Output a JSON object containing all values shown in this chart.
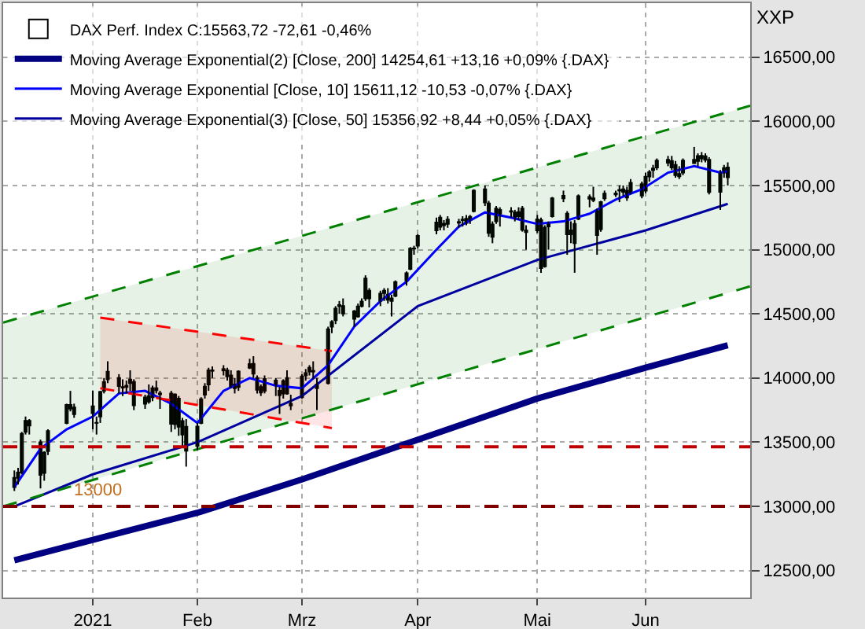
{
  "chart_data": {
    "type": "candlestick",
    "legend": "top left",
    "grid": true,
    "x": [
      "2020-12-14",
      "2020-12-15",
      "2020-12-16",
      "2020-12-17",
      "2020-12-18",
      "2020-12-21",
      "2020-12-22",
      "2020-12-23",
      "2020-12-28",
      "2020-12-29",
      "2020-12-30",
      "2021-01-04",
      "2021-01-05",
      "2021-01-06",
      "2021-01-07",
      "2021-01-08",
      "2021-01-11",
      "2021-01-12",
      "2021-01-13",
      "2021-01-14",
      "2021-01-15",
      "2021-01-18",
      "2021-01-19",
      "2021-01-20",
      "2021-01-21",
      "2021-01-22",
      "2021-01-25",
      "2021-01-26",
      "2021-01-27",
      "2021-01-28",
      "2021-01-29",
      "2021-02-01",
      "2021-02-02",
      "2021-02-03",
      "2021-02-04",
      "2021-02-05",
      "2021-02-08",
      "2021-02-09",
      "2021-02-10",
      "2021-02-11",
      "2021-02-12",
      "2021-02-15",
      "2021-02-16",
      "2021-02-17",
      "2021-02-18",
      "2021-02-19",
      "2021-02-22",
      "2021-02-23",
      "2021-02-24",
      "2021-02-25",
      "2021-02-26",
      "2021-03-01",
      "2021-03-02",
      "2021-03-03",
      "2021-03-04",
      "2021-03-05",
      "2021-03-08",
      "2021-03-09",
      "2021-03-10",
      "2021-03-11",
      "2021-03-12",
      "2021-03-15",
      "2021-03-16",
      "2021-03-17",
      "2021-03-18",
      "2021-03-19",
      "2021-03-22",
      "2021-03-23",
      "2021-03-24",
      "2021-03-25",
      "2021-03-26",
      "2021-03-29",
      "2021-03-30",
      "2021-03-31",
      "2021-04-01",
      "2021-04-06",
      "2021-04-07",
      "2021-04-08",
      "2021-04-09",
      "2021-04-12",
      "2021-04-13",
      "2021-04-14",
      "2021-04-15",
      "2021-04-16",
      "2021-04-19",
      "2021-04-20",
      "2021-04-21",
      "2021-04-22",
      "2021-04-23",
      "2021-04-26",
      "2021-04-27",
      "2021-04-28",
      "2021-04-29",
      "2021-04-30",
      "2021-05-03",
      "2021-05-04",
      "2021-05-05",
      "2021-05-06",
      "2021-05-07",
      "2021-05-10",
      "2021-05-11",
      "2021-05-12",
      "2021-05-13",
      "2021-05-14",
      "2021-05-17",
      "2021-05-18",
      "2021-05-19",
      "2021-05-20",
      "2021-05-21",
      "2021-05-24",
      "2021-05-25",
      "2021-05-26",
      "2021-05-27",
      "2021-05-28",
      "2021-05-31",
      "2021-06-01",
      "2021-06-02",
      "2021-06-03",
      "2021-06-04",
      "2021-06-07",
      "2021-06-08",
      "2021-06-09",
      "2021-06-10",
      "2021-06-11",
      "2021-06-14",
      "2021-06-15",
      "2021-06-16",
      "2021-06-17",
      "2021-06-18",
      "2021-06-21",
      "2021-06-22",
      "2021-06-23"
    ],
    "series": [
      {
        "type": "candlestick",
        "name": "DAX Perf. Index C:15563,72 -72,61 -0,46%",
        "colors": [
          "#ffffff",
          "#ffffff",
          "#ffffff",
          "#ffffff",
          "#e00000",
          "#e00000",
          "#ffffff",
          "#ffffff",
          "#ffffff",
          "#e00000",
          "#e00000",
          "#e00000",
          "#ffffff",
          "#ffffff",
          "#ffffff",
          "#ffffff",
          "#e00000",
          "#e00000",
          "#ffffff",
          "#ffffff",
          "#e00000",
          "#ffffff",
          "#e00000",
          "#ffffff",
          "#e00000",
          "#e00000",
          "#e00000",
          "#ffffff",
          "#e00000",
          "#ffffff",
          "#e00000",
          "#ffffff",
          "#ffffff",
          "#ffffff",
          "#ffffff",
          "#e00000",
          "#e00000",
          "#e00000",
          "#e00000",
          "#e00000",
          "#ffffff",
          "#ffffff",
          "#e00000",
          "#e00000",
          "#e00000",
          "#ffffff",
          "#e00000",
          "#e00000",
          "#ffffff",
          "#e00000",
          "#e00000",
          "#ffffff",
          "#ffffff",
          "#ffffff",
          "#ffffff",
          "#e00000",
          "#ffffff",
          "#ffffff",
          "#ffffff",
          "#ffffff",
          "#e00000",
          "#e00000",
          "#ffffff",
          "#ffffff",
          "#ffffff",
          "#e00000",
          "#ffffff",
          "#e00000",
          "#e00000",
          "#ffffff",
          "#ffffff",
          "#ffffff",
          "#ffffff",
          "#e00000",
          "#ffffff",
          "#ffffff",
          "#e00000",
          "#ffffff",
          "#ffffff",
          "#ffffff",
          "#ffffff",
          "#e00000",
          "#ffffff",
          "#ffffff",
          "#e00000",
          "#e00000",
          "#ffffff",
          "#ffffff",
          "#e00000",
          "#e00000",
          "#e00000",
          "#ffffff",
          "#e00000",
          "#e00000",
          "#ffffff",
          "#e00000",
          "#ffffff",
          "#ffffff",
          "#ffffff",
          "#e00000",
          "#e00000",
          "#ffffff",
          "#ffffff",
          "#ffffff",
          "#e00000",
          "#e00000",
          "#e00000",
          "#ffffff",
          "#ffffff",
          "#ffffff",
          "#ffffff",
          "#e00000",
          "#e00000",
          "#ffffff",
          "#e00000",
          "#ffffff",
          "#ffffff",
          "#ffffff",
          "#ffffff",
          "#e00000",
          "#e00000",
          "#e00000",
          "#e00000",
          "#ffffff",
          "#e00000",
          "#ffffff",
          "#e00000",
          "#ffffff",
          "#e00000",
          "#ffffff",
          "#ffffff",
          "#e00000"
        ],
        "ohlc": [
          [
            13150,
            13280,
            13120,
            13223
          ],
          [
            13223,
            13300,
            13170,
            13263
          ],
          [
            13263,
            13580,
            13250,
            13566
          ],
          [
            13580,
            13700,
            13560,
            13667
          ],
          [
            13667,
            13680,
            13560,
            13630
          ],
          [
            13500,
            13520,
            13140,
            13246
          ],
          [
            13260,
            13430,
            13200,
            13418
          ],
          [
            13430,
            13600,
            13400,
            13587
          ],
          [
            13650,
            13800,
            13640,
            13790
          ],
          [
            13790,
            13900,
            13740,
            13761
          ],
          [
            13770,
            13800,
            13690,
            13718
          ],
          [
            13780,
            13900,
            13600,
            13726
          ],
          [
            13650,
            13700,
            13560,
            13651
          ],
          [
            13700,
            13900,
            13650,
            13892
          ],
          [
            13900,
            14000,
            13880,
            13968
          ],
          [
            13990,
            14130,
            13960,
            14049
          ],
          [
            14000,
            14030,
            13880,
            13937
          ],
          [
            13930,
            13990,
            13860,
            13925
          ],
          [
            13930,
            13980,
            13880,
            13940
          ],
          [
            13960,
            14060,
            13900,
            13988
          ],
          [
            13970,
            13990,
            13750,
            13787
          ],
          [
            13800,
            13870,
            13760,
            13848
          ],
          [
            13860,
            13950,
            13800,
            13816
          ],
          [
            13850,
            13940,
            13820,
            13921
          ],
          [
            13920,
            13980,
            13880,
            13906
          ],
          [
            13880,
            13900,
            13760,
            13873
          ],
          [
            13880,
            13900,
            13580,
            13643
          ],
          [
            13640,
            13880,
            13600,
            13871
          ],
          [
            13840,
            13860,
            13550,
            13620
          ],
          [
            13560,
            13690,
            13470,
            13665
          ],
          [
            13620,
            13680,
            13310,
            13433
          ],
          [
            13470,
            13650,
            13440,
            13622
          ],
          [
            13650,
            13850,
            13640,
            13835
          ],
          [
            13870,
            13960,
            13840,
            13933
          ],
          [
            13950,
            14080,
            13900,
            14060
          ],
          [
            14060,
            14090,
            14000,
            14056
          ],
          [
            14070,
            14100,
            14020,
            14059
          ],
          [
            14060,
            14080,
            13980,
            14012
          ],
          [
            14020,
            14060,
            13920,
            13932
          ],
          [
            13950,
            14000,
            13880,
            13921
          ],
          [
            13930,
            14060,
            13900,
            14050
          ],
          [
            14080,
            14150,
            14070,
            14109
          ],
          [
            14110,
            14170,
            14000,
            14034
          ],
          [
            14000,
            14020,
            13880,
            13909
          ],
          [
            13930,
            13950,
            13860,
            13887
          ],
          [
            13900,
            14020,
            13880,
            13993
          ],
          [
            13980,
            14000,
            13860,
            13950
          ],
          [
            13900,
            13930,
            13720,
            13865
          ],
          [
            13880,
            13990,
            13840,
            13976
          ],
          [
            14000,
            14060,
            13870,
            13879
          ],
          [
            13800,
            13870,
            13750,
            13786
          ],
          [
            13850,
            14030,
            13840,
            14012
          ],
          [
            14020,
            14070,
            13980,
            14039
          ],
          [
            14050,
            14100,
            14020,
            14080
          ],
          [
            14050,
            14130,
            13990,
            14056
          ],
          [
            13950,
            14000,
            13750,
            13920
          ],
          [
            13960,
            14400,
            13950,
            14380
          ],
          [
            14400,
            14450,
            14350,
            14437
          ],
          [
            14450,
            14560,
            14420,
            14540
          ],
          [
            14560,
            14600,
            14500,
            14569
          ],
          [
            14560,
            14620,
            14480,
            14502
          ],
          [
            14520,
            14530,
            14400,
            14461
          ],
          [
            14480,
            14580,
            14470,
            14557
          ],
          [
            14560,
            14620,
            14550,
            14596
          ],
          [
            14620,
            14800,
            14600,
            14775
          ],
          [
            14680,
            14700,
            14550,
            14621
          ],
          [
            14600,
            14680,
            14560,
            14657
          ],
          [
            14680,
            14700,
            14600,
            14662
          ],
          [
            14650,
            14700,
            14580,
            14610
          ],
          [
            14600,
            14650,
            14480,
            14621
          ],
          [
            14640,
            14760,
            14630,
            14748
          ],
          [
            14760,
            14830,
            14720,
            14817
          ],
          [
            14850,
            15020,
            14840,
            15008
          ],
          [
            15010,
            15030,
            14960,
            15008
          ],
          [
            15030,
            15120,
            15010,
            15107
          ],
          [
            15150,
            15250,
            15120,
            15212
          ],
          [
            15250,
            15270,
            15150,
            15177
          ],
          [
            15190,
            15230,
            15150,
            15202
          ],
          [
            15200,
            15260,
            15170,
            15234
          ],
          [
            15210,
            15240,
            15170,
            15215
          ],
          [
            15230,
            15260,
            15180,
            15234
          ],
          [
            15240,
            15270,
            15190,
            15209
          ],
          [
            15230,
            15270,
            15200,
            15255
          ],
          [
            15300,
            15470,
            15290,
            15460
          ],
          [
            15470,
            15500,
            15340,
            15368
          ],
          [
            15360,
            15380,
            15100,
            15130
          ],
          [
            15100,
            15220,
            15050,
            15196
          ],
          [
            15220,
            15340,
            15200,
            15320
          ],
          [
            15310,
            15330,
            15180,
            15280
          ],
          [
            15300,
            15330,
            15250,
            15296
          ],
          [
            15290,
            15310,
            15220,
            15249
          ],
          [
            15260,
            15330,
            15230,
            15292
          ],
          [
            15320,
            15340,
            15140,
            15154
          ],
          [
            15150,
            15190,
            15000,
            15136
          ],
          [
            15150,
            15270,
            15130,
            15236
          ],
          [
            15230,
            15250,
            14820,
            14856
          ],
          [
            14870,
            15190,
            14860,
            15170
          ],
          [
            15180,
            15220,
            15000,
            15197
          ],
          [
            15260,
            15410,
            15250,
            15400
          ],
          [
            15420,
            15460,
            15370,
            15400
          ],
          [
            15280,
            15300,
            14960,
            15120
          ],
          [
            15120,
            15220,
            15050,
            15150
          ],
          [
            15050,
            15230,
            14820,
            15200
          ],
          [
            15240,
            15430,
            15230,
            15416
          ],
          [
            15410,
            15430,
            15330,
            15397
          ],
          [
            15400,
            15490,
            15370,
            15386
          ],
          [
            15300,
            15320,
            14960,
            15114
          ],
          [
            15160,
            15380,
            15140,
            15370
          ],
          [
            15400,
            15460,
            15380,
            15437
          ],
          [
            15430,
            15460,
            15410,
            15438
          ],
          [
            15460,
            15500,
            15370,
            15465
          ],
          [
            15470,
            15500,
            15420,
            15450
          ],
          [
            15460,
            15490,
            15380,
            15406
          ],
          [
            15440,
            15550,
            15430,
            15520
          ],
          [
            15510,
            15530,
            15400,
            15421
          ],
          [
            15460,
            15600,
            15440,
            15568
          ],
          [
            15570,
            15620,
            15530,
            15603
          ],
          [
            15620,
            15660,
            15560,
            15632
          ],
          [
            15640,
            15710,
            15620,
            15693
          ],
          [
            15700,
            15730,
            15650,
            15677
          ],
          [
            15690,
            15730,
            15620,
            15640
          ],
          [
            15660,
            15690,
            15560,
            15581
          ],
          [
            15590,
            15650,
            15550,
            15571
          ],
          [
            15600,
            15710,
            15580,
            15693
          ],
          [
            15700,
            15800,
            15670,
            15673
          ],
          [
            15690,
            15750,
            15650,
            15729
          ],
          [
            15730,
            15760,
            15680,
            15711
          ],
          [
            15700,
            15750,
            15680,
            15728
          ],
          [
            15700,
            15720,
            15430,
            15448
          ],
          [
            15450,
            15620,
            15310,
            15603
          ],
          [
            15600,
            15660,
            15560,
            15636
          ],
          [
            15640,
            15680,
            15500,
            15563.72
          ]
        ]
      },
      {
        "type": "line",
        "name": "Moving Average Exponential(2) [Close, 200] 14254,61 +13,16 +0,09% {.DAX}",
        "color": "#000080",
        "x": [
          "2020-12-14",
          "2021-01-04",
          "2021-02-01",
          "2021-03-01",
          "2021-04-01",
          "2021-05-03",
          "2021-06-01",
          "2021-06-23"
        ],
        "values": [
          12580,
          12740,
          12950,
          13210,
          13520,
          13840,
          14080,
          14254.61
        ]
      },
      {
        "type": "line",
        "name": "Moving Average Exponential [Close, 10] 15611,12 -10,53 -0,07% {.DAX}",
        "color": "#0000ff",
        "x": [
          "2020-12-14",
          "2020-12-21",
          "2020-12-28",
          "2021-01-04",
          "2021-01-11",
          "2021-01-18",
          "2021-01-25",
          "2021-02-01",
          "2021-02-08",
          "2021-02-15",
          "2021-02-22",
          "2021-03-01",
          "2021-03-08",
          "2021-03-15",
          "2021-03-22",
          "2021-03-29",
          "2021-04-06",
          "2021-04-12",
          "2021-04-19",
          "2021-04-26",
          "2021-05-03",
          "2021-05-10",
          "2021-05-17",
          "2021-05-24",
          "2021-05-31",
          "2021-06-07",
          "2021-06-14",
          "2021-06-21",
          "2021-06-23"
        ],
        "values": [
          13150,
          13450,
          13600,
          13700,
          13880,
          13900,
          13800,
          13650,
          13900,
          14000,
          13940,
          13920,
          14100,
          14400,
          14600,
          14750,
          15000,
          15180,
          15290,
          15250,
          15200,
          15220,
          15280,
          15390,
          15470,
          15600,
          15650,
          15600,
          15611.12
        ]
      },
      {
        "type": "line",
        "name": "Moving Average Exponential(3) [Close, 50] 15356,92 +8,44 +0,05% {.DAX}",
        "color": "#0000a0",
        "x": [
          "2020-12-14",
          "2021-01-04",
          "2021-02-01",
          "2021-03-01",
          "2021-04-01",
          "2021-05-03",
          "2021-06-01",
          "2021-06-23"
        ],
        "values": [
          13000,
          13250,
          13500,
          13860,
          14560,
          14920,
          15150,
          15356.92
        ]
      },
      {
        "type": "line",
        "color": "#008000",
        "line_style": "dashed",
        "x": [
          "2020-12-11",
          "2021-06-29"
        ],
        "values": [
          13000,
          14714
        ]
      },
      {
        "type": "line",
        "color": "#008000",
        "line_style": "dashed",
        "x": [
          "2020-12-11",
          "2021-06-29"
        ],
        "values": [
          14432,
          16121
        ],
        "lower": [
          13000,
          14714
        ],
        "upper": [
          14432,
          16121
        ]
      },
      {
        "type": "line",
        "color": "#ff0000",
        "line_style": "dashed",
        "x": [
          "2021-01-06",
          "2021-03-09"
        ],
        "values": [
          13920,
          13610
        ]
      },
      {
        "type": "line",
        "color": "#ff0000",
        "line_style": "dashed",
        "x": [
          "2021-01-06",
          "2021-03-09"
        ],
        "values": [
          14470,
          14210
        ],
        "lower": [
          13920,
          13610
        ],
        "upper": [
          14470,
          14210
        ]
      }
    ],
    "xlim": [
      "2020-12-11",
      "2021-06-29"
    ],
    "xticks": [
      {
        "value": "2021-01-04",
        "label": "2021"
      },
      {
        "value": "2021-02-01",
        "label": "Feb"
      },
      {
        "value": "2021-03-01",
        "label": "Mrz"
      },
      {
        "value": "2021-04-01",
        "label": "Apr"
      },
      {
        "value": "2021-05-03",
        "label": "Mai"
      },
      {
        "value": "2021-06-01",
        "label": "Jun"
      }
    ],
    "ylim": [
      12290,
      16920
    ],
    "yticks": [
      {
        "value": 12500,
        "label": "12500,00"
      },
      {
        "value": 13000,
        "label": "13000,00"
      },
      {
        "value": 13500,
        "label": "13500,00"
      },
      {
        "value": 14000,
        "label": "14000,00"
      },
      {
        "value": 14500,
        "label": "14500,00"
      },
      {
        "value": 15000,
        "label": "15000,00"
      },
      {
        "value": 15500,
        "label": "15500,00"
      },
      {
        "value": 16000,
        "label": "16000,00"
      },
      {
        "value": 16500,
        "label": "16500,00"
      }
    ],
    "ref_lines": [
      {
        "axis": "y",
        "value": 13000,
        "label": "13000",
        "color": "#800000",
        "line_style": "dashed"
      },
      {
        "axis": "y",
        "value": 13465,
        "color": "#c00000",
        "line_style": "dashed"
      }
    ],
    "annotations": [
      "XXP"
    ]
  }
}
